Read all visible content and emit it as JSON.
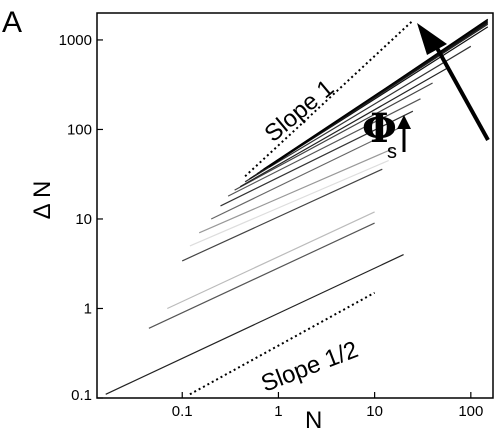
{
  "panel_label": "A",
  "annotations": {
    "slope_one": "Slope 1",
    "slope_half": "Slope 1/2",
    "phi_symbol": "Φ",
    "phi_subscript": "s"
  },
  "chart_data": {
    "type": "line",
    "x_scale": "log",
    "y_scale": "log",
    "xlabel": "N",
    "ylabel": "Δ N",
    "xlim": [
      0.013,
      170
    ],
    "ylim": [
      0.1,
      2000
    ],
    "grid": false,
    "legend": "none",
    "x_ticks": [
      0.1,
      1,
      10,
      100
    ],
    "x_tick_labels": [
      "0.1",
      "1",
      "10",
      "100"
    ],
    "y_ticks": [
      0.1,
      1,
      10,
      100,
      1000
    ],
    "y_tick_labels": [
      "0.1",
      "1",
      "10",
      "100",
      "1000"
    ],
    "series": [
      {
        "x": [
          0.016,
          20
        ],
        "y": [
          0.11,
          4.0
        ],
        "style": "solid",
        "color": "#222222"
      },
      {
        "x": [
          0.045,
          10
        ],
        "y": [
          0.6,
          9.0
        ],
        "style": "solid",
        "color": "#555555"
      },
      {
        "x": [
          0.07,
          10
        ],
        "y": [
          1.0,
          12
        ],
        "style": "solid",
        "color": "#bbbbbb"
      },
      {
        "x": [
          0.1,
          12
        ],
        "y": [
          3.4,
          36
        ],
        "style": "solid",
        "color": "#444444"
      },
      {
        "x": [
          0.12,
          14
        ],
        "y": [
          5.0,
          45
        ],
        "style": "solid",
        "color": "#dddddd"
      },
      {
        "x": [
          0.15,
          15
        ],
        "y": [
          7.0,
          60
        ],
        "style": "solid",
        "color": "#999999"
      },
      {
        "x": [
          0.2,
          20
        ],
        "y": [
          10,
          110
        ],
        "style": "solid",
        "color": "#666666"
      },
      {
        "x": [
          0.25,
          25
        ],
        "y": [
          14,
          160
        ],
        "style": "solid",
        "color": "#333333"
      },
      {
        "x": [
          0.3,
          30
        ],
        "y": [
          18,
          220
        ],
        "style": "solid",
        "color": "#555555"
      },
      {
        "x": [
          0.35,
          40
        ],
        "y": [
          21,
          330
        ],
        "style": "solid",
        "color": "#444444"
      },
      {
        "x": [
          0.4,
          60
        ],
        "y": [
          23,
          500
        ],
        "style": "solid",
        "color": "#222222"
      },
      {
        "x": [
          0.45,
          100
        ],
        "y": [
          26,
          850
        ],
        "style": "solid",
        "color": "#333333"
      },
      {
        "x": [
          0.5,
          150
        ],
        "y": [
          28,
          1400
        ],
        "style": "solid",
        "color": "#111111"
      },
      {
        "x": [
          0.55,
          150
        ],
        "y": [
          30,
          1500
        ],
        "style": "solid",
        "color": "#222222"
      },
      {
        "x": [
          0.6,
          150
        ],
        "y": [
          32,
          1550
        ],
        "style": "solid",
        "color": "#111111"
      },
      {
        "x": [
          0.65,
          150
        ],
        "y": [
          34,
          1600
        ],
        "style": "solid",
        "color": "#111111"
      },
      {
        "x": [
          0.7,
          150
        ],
        "y": [
          36,
          1650
        ],
        "style": "solid",
        "color": "#000000"
      },
      {
        "x": [
          0.8,
          150
        ],
        "y": [
          38,
          1700
        ],
        "style": "solid",
        "color": "#000000"
      },
      {
        "x": [
          0.45,
          25
        ],
        "y": [
          30,
          1650
        ],
        "style": "dotted",
        "color": "#000000"
      },
      {
        "x": [
          0.12,
          10
        ],
        "y": [
          0.11,
          1.5
        ],
        "style": "dotted",
        "color": "#000000"
      }
    ]
  }
}
